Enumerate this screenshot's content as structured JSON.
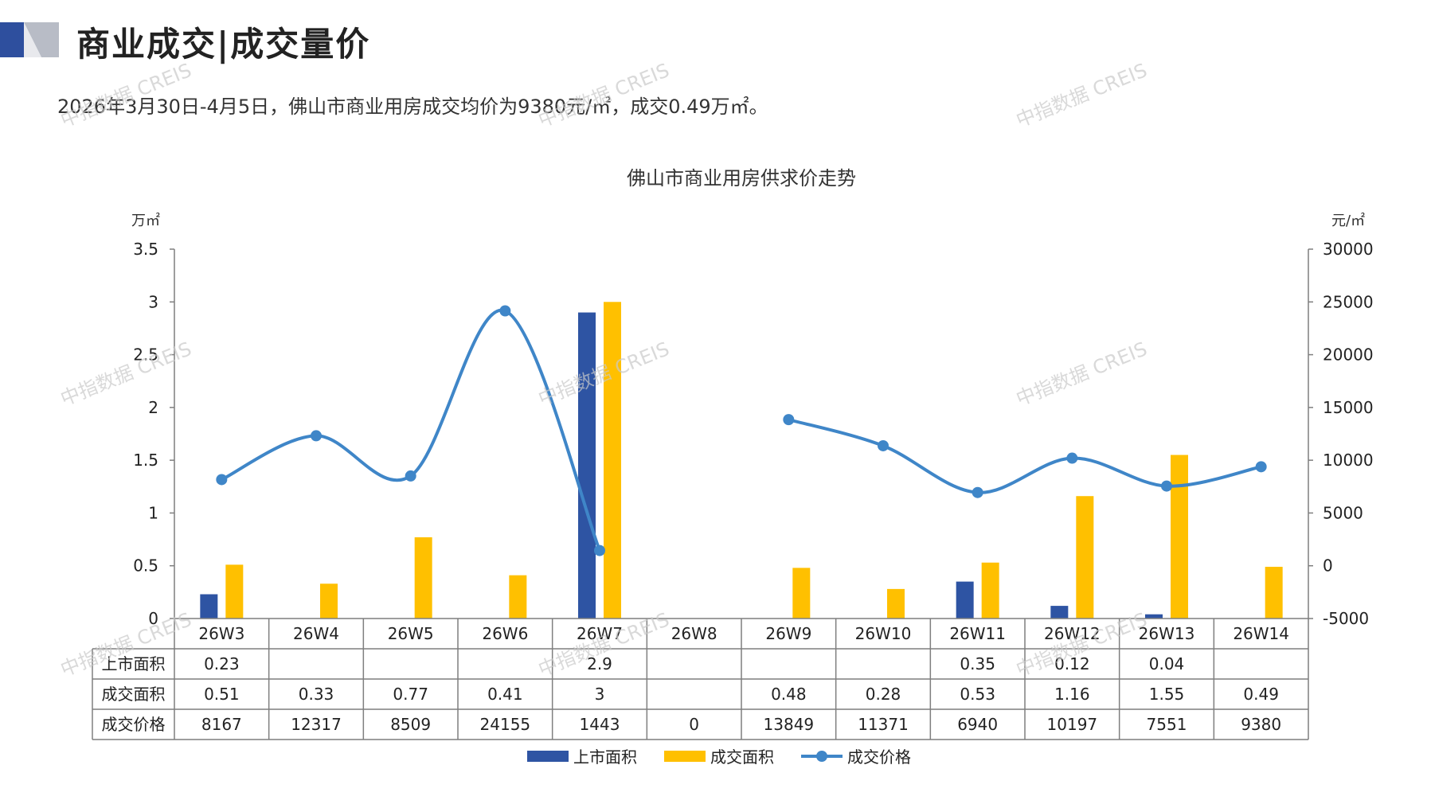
{
  "header": {
    "title": "商业成交|成交量价",
    "subtitle": "2026年3月30日-4月5日，佛山市商业用房成交均价为9380元/㎡，成交0.49万㎡。"
  },
  "watermark": "中指数据 CREIS",
  "colors": {
    "listed_bar": "#2e54a3",
    "sold_bar": "#ffc000",
    "price_line": "#3f86c8",
    "axis": "#7f7f7f",
    "logo_dark": "#2e4f9e",
    "logo_light": "#b8bcc6"
  },
  "chart_data": {
    "type": "bar",
    "title": "佛山市商业用房供求价走势",
    "y_left_label": "万㎡",
    "y_right_label": "元/㎡",
    "y_left_lim": [
      0,
      3.5
    ],
    "y_left_ticks": [
      "0",
      "0.5",
      "1",
      "1.5",
      "2",
      "2.5",
      "3",
      "3.5"
    ],
    "y_right_lim": [
      -5000,
      30000
    ],
    "y_right_ticks": [
      "-5000",
      "0",
      "5000",
      "10000",
      "15000",
      "20000",
      "25000",
      "30000"
    ],
    "categories": [
      "26W3",
      "26W4",
      "26W5",
      "26W6",
      "26W7",
      "26W8",
      "26W9",
      "26W10",
      "26W11",
      "26W12",
      "26W13",
      "26W14"
    ],
    "series": [
      {
        "name": "上市面积",
        "kind": "bar",
        "axis": "left",
        "values": [
          0.23,
          null,
          null,
          null,
          2.9,
          null,
          null,
          null,
          0.35,
          0.12,
          0.04,
          null
        ],
        "labels": [
          "0.23",
          "",
          "",
          "",
          "2.9",
          "",
          "",
          "",
          "0.35",
          "0.12",
          "0.04",
          ""
        ]
      },
      {
        "name": "成交面积",
        "kind": "bar",
        "axis": "left",
        "values": [
          0.51,
          0.33,
          0.77,
          0.41,
          3,
          null,
          0.48,
          0.28,
          0.53,
          1.16,
          1.55,
          0.49
        ],
        "labels": [
          "0.51",
          "0.33",
          "0.77",
          "0.41",
          "3",
          "",
          "0.48",
          "0.28",
          "0.53",
          "1.16",
          "1.55",
          "0.49"
        ]
      },
      {
        "name": "成交价格",
        "kind": "line",
        "axis": "right",
        "values": [
          8167,
          12317,
          8509,
          24155,
          1443,
          0,
          13849,
          11371,
          6940,
          10197,
          7551,
          9380
        ],
        "labels": [
          "8167",
          "12317",
          "8509",
          "24155",
          "1443",
          "0",
          "13849",
          "11371",
          "6940",
          "10197",
          "7551",
          "9380"
        ]
      }
    ],
    "legend_position": "bottom",
    "data_table": true
  }
}
